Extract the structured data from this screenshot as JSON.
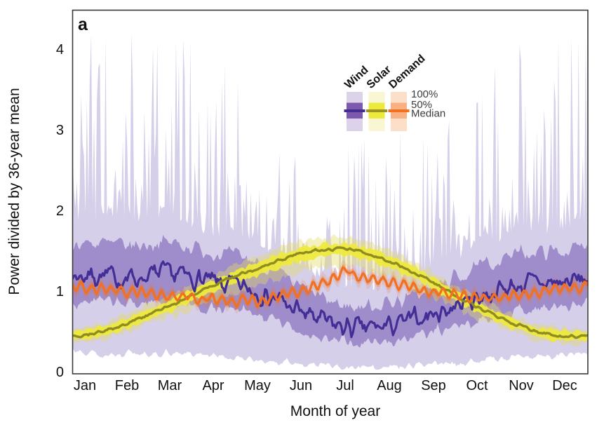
{
  "figure": {
    "panel_label": "a"
  },
  "axes": {
    "x": {
      "label": "Month of year",
      "tick_labels": [
        "Jan",
        "Feb",
        "Mar",
        "Apr",
        "May",
        "Jun",
        "Jul",
        "Aug",
        "Sep",
        "Oct",
        "Nov",
        "Dec"
      ]
    },
    "y": {
      "label": "Power divided by 36-year mean",
      "tick_labels": [
        "0",
        "1",
        "2",
        "3",
        "4"
      ],
      "range": [
        0,
        4.5
      ]
    }
  },
  "legend": {
    "band_labels": {
      "b100": "100%",
      "b50": "50%",
      "median": "Median"
    },
    "series": [
      {
        "name": "Wind",
        "label_color": "#46309a",
        "band100": "#dcd3eb",
        "band50": "#7d59ae",
        "median": "#432d93"
      },
      {
        "name": "Solar",
        "label_color": "#9a9320",
        "band100": "#f8f6d3",
        "band50": "#eee93d",
        "median": "#9c9526"
      },
      {
        "name": "Demand",
        "label_color": "#f2701f",
        "band100": "#fcdfc9",
        "band50": "#f9b183",
        "median": "#f2701f"
      }
    ]
  },
  "chart_data": {
    "type": "line",
    "title": "",
    "xlabel": "Month of year",
    "ylabel": "Power divided by 36-year mean",
    "x_unit": "day_of_year",
    "categories": [
      "Jan",
      "Feb",
      "Mar",
      "Apr",
      "May",
      "Jun",
      "Jul",
      "Aug",
      "Sep",
      "Oct",
      "Nov",
      "Dec"
    ],
    "ylim": [
      0,
      4.5
    ],
    "grid": false,
    "legend_position": "top-right",
    "noise_seed": 7,
    "series_monthly": {
      "wind": {
        "median": [
          1.2,
          1.16,
          1.21,
          1.1,
          1.0,
          0.74,
          0.55,
          0.57,
          0.72,
          0.92,
          1.08,
          1.11
        ],
        "p25": [
          0.88,
          0.84,
          0.87,
          0.78,
          0.7,
          0.5,
          0.36,
          0.38,
          0.48,
          0.62,
          0.77,
          0.8
        ],
        "p75": [
          1.6,
          1.56,
          1.6,
          1.48,
          1.36,
          1.04,
          0.82,
          0.86,
          1.04,
          1.28,
          1.47,
          1.5
        ],
        "p0": [
          0.24,
          0.22,
          0.24,
          0.2,
          0.15,
          0.09,
          0.06,
          0.06,
          0.1,
          0.14,
          0.19,
          0.21
        ],
        "p100": [
          2.95,
          2.85,
          2.9,
          2.6,
          2.3,
          1.9,
          1.7,
          1.75,
          2.05,
          2.4,
          2.6,
          2.75
        ],
        "max_spike": 4.2
      },
      "solar": {
        "median": [
          0.46,
          0.6,
          0.82,
          1.07,
          1.28,
          1.46,
          1.52,
          1.37,
          1.1,
          0.8,
          0.56,
          0.44
        ],
        "p25": [
          0.41,
          0.54,
          0.75,
          0.99,
          1.19,
          1.37,
          1.44,
          1.29,
          1.03,
          0.74,
          0.51,
          0.39
        ],
        "p75": [
          0.52,
          0.67,
          0.89,
          1.14,
          1.36,
          1.53,
          1.59,
          1.44,
          1.17,
          0.86,
          0.62,
          0.5
        ],
        "p0": [
          0.37,
          0.49,
          0.67,
          0.88,
          1.07,
          1.24,
          1.3,
          1.17,
          0.93,
          0.67,
          0.46,
          0.35
        ],
        "p100": [
          0.56,
          0.71,
          0.94,
          1.2,
          1.43,
          1.62,
          1.66,
          1.51,
          1.23,
          0.92,
          0.66,
          0.54
        ]
      },
      "demand": {
        "median": [
          1.04,
          1.0,
          0.95,
          0.9,
          0.88,
          1.01,
          1.17,
          1.1,
          1.0,
          0.93,
          0.96,
          1.03
        ],
        "band_half_50": 0.04,
        "band_half_100": 0.09,
        "weekly_amplitude": 0.048,
        "july_peak": 1.35
      }
    },
    "plot_colors": {
      "wind": {
        "band100": "rgba(93,64,168,0.25)",
        "band50": "rgba(93,64,168,0.46)",
        "median": "#432e96"
      },
      "solar": {
        "band100": "rgba(228,219,100,0.40)",
        "band50": "rgba(238,233,62,0.95)",
        "median": "#8f8c20"
      },
      "demand": {
        "band100": "rgba(242,111,31,0.16)",
        "band50": "rgba(242,111,31,0.35)",
        "median": "#f2701f"
      }
    }
  }
}
